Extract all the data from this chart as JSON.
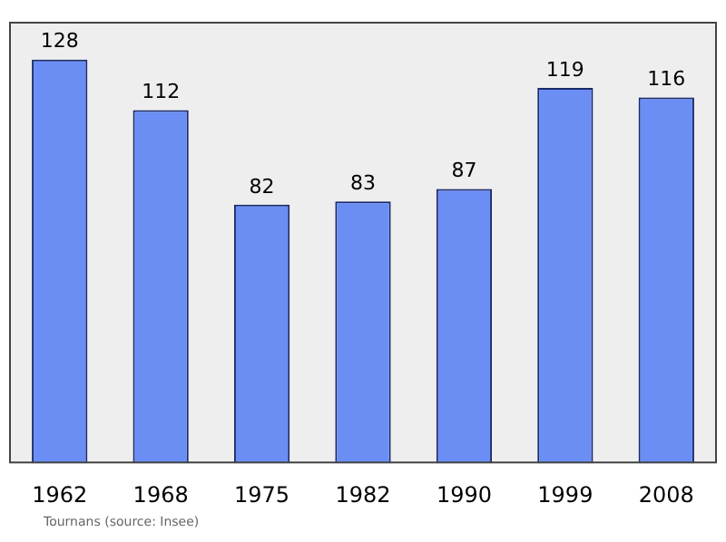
{
  "chart_data": {
    "type": "bar",
    "categories": [
      "1962",
      "1968",
      "1975",
      "1982",
      "1990",
      "1999",
      "2008"
    ],
    "values": [
      128,
      112,
      82,
      83,
      87,
      119,
      116
    ],
    "color": "#6b8ef5",
    "data_labels": true,
    "annotations": [
      "Tournans    (source: Insee)"
    ]
  }
}
